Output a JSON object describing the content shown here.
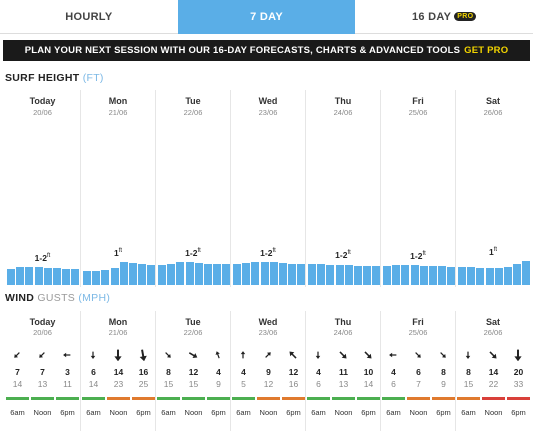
{
  "tabs": [
    {
      "label": "HOURLY",
      "active": false
    },
    {
      "label": "7 DAY",
      "active": true
    },
    {
      "label": "16 DAY",
      "active": false,
      "badge": "PRO"
    }
  ],
  "promo": {
    "text": "PLAN YOUR NEXT SESSION WITH OUR 16-DAY FORECASTS, CHARTS & ADVANCED TOOLS",
    "cta": "GET PRO"
  },
  "surf": {
    "title": "SURF HEIGHT",
    "unit": "(FT)",
    "days": [
      {
        "name": "Today",
        "date": "20/06",
        "label": "1-2",
        "unit": "ft",
        "bars": [
          1.3,
          1.4,
          1.45,
          1.4,
          1.35,
          1.35,
          1.3,
          1.3
        ]
      },
      {
        "name": "Mon",
        "date": "21/06",
        "label": "1",
        "unit": "ft",
        "bars": [
          1.15,
          1.1,
          1.2,
          1.35,
          1.85,
          1.75,
          1.65,
          1.6
        ]
      },
      {
        "name": "Tue",
        "date": "22/06",
        "label": "1-2",
        "unit": "ft",
        "bars": [
          1.6,
          1.7,
          1.8,
          1.8,
          1.75,
          1.7,
          1.7,
          1.7
        ]
      },
      {
        "name": "Wed",
        "date": "23/06",
        "label": "1-2",
        "unit": "ft",
        "bars": [
          1.7,
          1.75,
          1.8,
          1.85,
          1.8,
          1.75,
          1.7,
          1.7
        ]
      },
      {
        "name": "Thu",
        "date": "24/06",
        "label": "1-2",
        "unit": "ft",
        "bars": [
          1.7,
          1.65,
          1.6,
          1.6,
          1.6,
          1.55,
          1.55,
          1.5
        ]
      },
      {
        "name": "Fri",
        "date": "25/06",
        "label": "1-2",
        "unit": "ft",
        "bars": [
          1.55,
          1.6,
          1.6,
          1.6,
          1.55,
          1.5,
          1.5,
          1.45
        ]
      },
      {
        "name": "Sat",
        "date": "26/06",
        "label": "1",
        "unit": "ft",
        "bars": [
          1.4,
          1.4,
          1.35,
          1.35,
          1.35,
          1.45,
          1.65,
          1.9
        ]
      }
    ]
  },
  "wind": {
    "title": "WIND",
    "gusts_label": "GUSTS",
    "unit": "(MPH)",
    "colors": {
      "green": "#4caf50",
      "orange": "#e07a2e",
      "red": "#d9403a"
    },
    "days": [
      {
        "name": "Today",
        "date": "20/06",
        "slots": [
          {
            "time": "6am",
            "speed": "7",
            "gust": "14",
            "dir": 225,
            "size": "s",
            "rating": "green"
          },
          {
            "time": "Noon",
            "speed": "7",
            "gust": "13",
            "dir": 225,
            "size": "s",
            "rating": "green"
          },
          {
            "time": "6pm",
            "speed": "3",
            "gust": "11",
            "dir": 270,
            "size": "s",
            "rating": "green"
          }
        ]
      },
      {
        "name": "Mon",
        "date": "21/06",
        "slots": [
          {
            "time": "6am",
            "speed": "6",
            "gust": "14",
            "dir": 180,
            "size": "s",
            "rating": "green"
          },
          {
            "time": "Noon",
            "speed": "14",
            "gust": "23",
            "dir": 180,
            "size": "l",
            "rating": "orange"
          },
          {
            "time": "6pm",
            "speed": "16",
            "gust": "25",
            "dir": 170,
            "size": "l",
            "rating": "orange"
          }
        ]
      },
      {
        "name": "Tue",
        "date": "22/06",
        "slots": [
          {
            "time": "6am",
            "speed": "8",
            "gust": "15",
            "dir": 135,
            "size": "s",
            "rating": "green"
          },
          {
            "time": "Noon",
            "speed": "12",
            "gust": "15",
            "dir": 120,
            "size": "m",
            "rating": "green"
          },
          {
            "time": "6pm",
            "speed": "4",
            "gust": "9",
            "dir": 340,
            "size": "s",
            "rating": "green"
          }
        ]
      },
      {
        "name": "Wed",
        "date": "23/06",
        "slots": [
          {
            "time": "6am",
            "speed": "4",
            "gust": "5",
            "dir": 0,
            "size": "s",
            "rating": "green"
          },
          {
            "time": "Noon",
            "speed": "9",
            "gust": "12",
            "dir": 45,
            "size": "s",
            "rating": "orange"
          },
          {
            "time": "6pm",
            "speed": "12",
            "gust": "16",
            "dir": 315,
            "size": "m",
            "rating": "orange"
          }
        ]
      },
      {
        "name": "Thu",
        "date": "24/06",
        "slots": [
          {
            "time": "6am",
            "speed": "4",
            "gust": "6",
            "dir": 180,
            "size": "s",
            "rating": "green"
          },
          {
            "time": "Noon",
            "speed": "11",
            "gust": "13",
            "dir": 135,
            "size": "m",
            "rating": "green"
          },
          {
            "time": "6pm",
            "speed": "10",
            "gust": "14",
            "dir": 135,
            "size": "m",
            "rating": "green"
          }
        ]
      },
      {
        "name": "Fri",
        "date": "25/06",
        "slots": [
          {
            "time": "6am",
            "speed": "4",
            "gust": "6",
            "dir": 270,
            "size": "s",
            "rating": "green"
          },
          {
            "time": "Noon",
            "speed": "6",
            "gust": "7",
            "dir": 135,
            "size": "s",
            "rating": "orange"
          },
          {
            "time": "6pm",
            "speed": "8",
            "gust": "9",
            "dir": 135,
            "size": "s",
            "rating": "orange"
          }
        ]
      },
      {
        "name": "Sat",
        "date": "26/06",
        "slots": [
          {
            "time": "6am",
            "speed": "8",
            "gust": "15",
            "dir": 180,
            "size": "s",
            "rating": "orange"
          },
          {
            "time": "Noon",
            "speed": "14",
            "gust": "22",
            "dir": 135,
            "size": "m",
            "rating": "red"
          },
          {
            "time": "6pm",
            "speed": "20",
            "gust": "33",
            "dir": 180,
            "size": "l",
            "rating": "red"
          }
        ]
      }
    ]
  }
}
